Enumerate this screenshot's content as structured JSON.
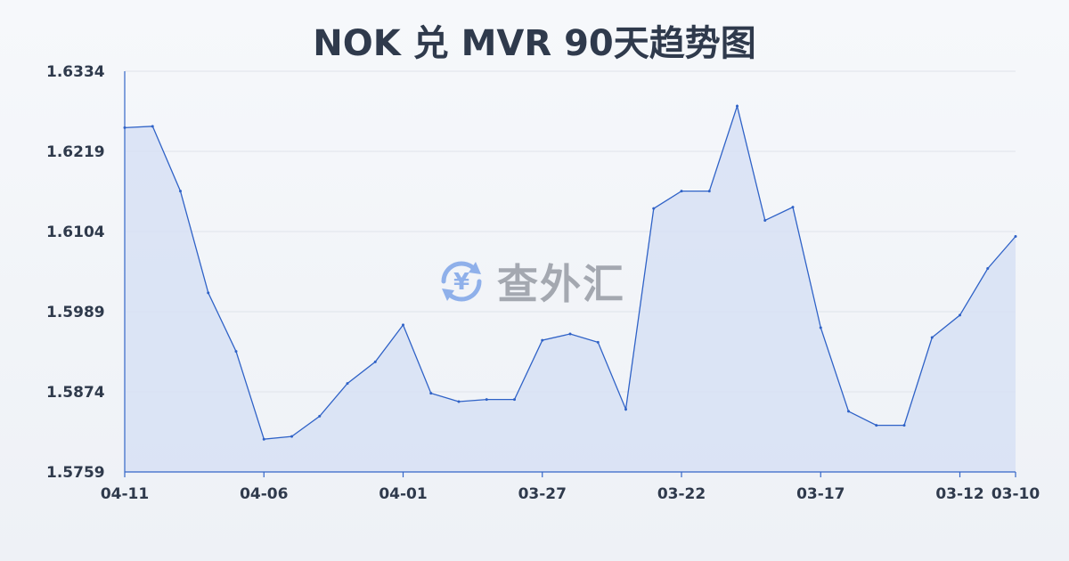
{
  "title": "NOK 兑 MVR 90天趋势图",
  "watermark": {
    "text": "查外汇",
    "icon": "yen-exchange-icon",
    "color": "#6f9ae6"
  },
  "colors": {
    "line": "#2f62c7",
    "area": "#d7e1f5",
    "text": "#2f3a4c"
  },
  "chart_data": {
    "type": "area",
    "title": "NOK 兑 MVR 90天趋势图",
    "xlabel": "",
    "ylabel": "",
    "ylim": [
      1.5759,
      1.6334
    ],
    "yticks": [
      "1.6334",
      "1.6219",
      "1.6104",
      "1.5989",
      "1.5874",
      "1.5759"
    ],
    "xticks": [
      "04-11",
      "04-06",
      "04-01",
      "03-27",
      "03-22",
      "03-17",
      "03-12",
      "03-10"
    ],
    "x_axis_reversed": true,
    "grid": true,
    "legend": "none",
    "x": [
      "04-11",
      "04-10",
      "04-09",
      "04-08",
      "04-07",
      "04-06",
      "04-05",
      "04-04",
      "04-03",
      "04-02",
      "04-01",
      "03-31",
      "03-30",
      "03-29",
      "03-28",
      "03-27",
      "03-26",
      "03-25",
      "03-24",
      "03-23",
      "03-22",
      "03-21",
      "03-20",
      "03-19",
      "03-18",
      "03-17",
      "03-16",
      "03-15",
      "03-14",
      "03-13",
      "03-12",
      "03-11",
      "03-10"
    ],
    "series": [
      {
        "values": [
          1.6253,
          1.6255,
          1.6162,
          1.6016,
          1.5932,
          1.5806,
          1.581,
          1.5839,
          1.5886,
          1.5917,
          1.597,
          1.5872,
          1.586,
          1.5863,
          1.5863,
          1.5948,
          1.5957,
          1.5945,
          1.5849,
          1.6137,
          1.6162,
          1.6162,
          1.6284,
          1.612,
          1.6139,
          1.5966,
          1.5846,
          1.5826,
          1.5826,
          1.5952,
          1.5984,
          1.6051,
          1.6097
        ]
      }
    ]
  }
}
